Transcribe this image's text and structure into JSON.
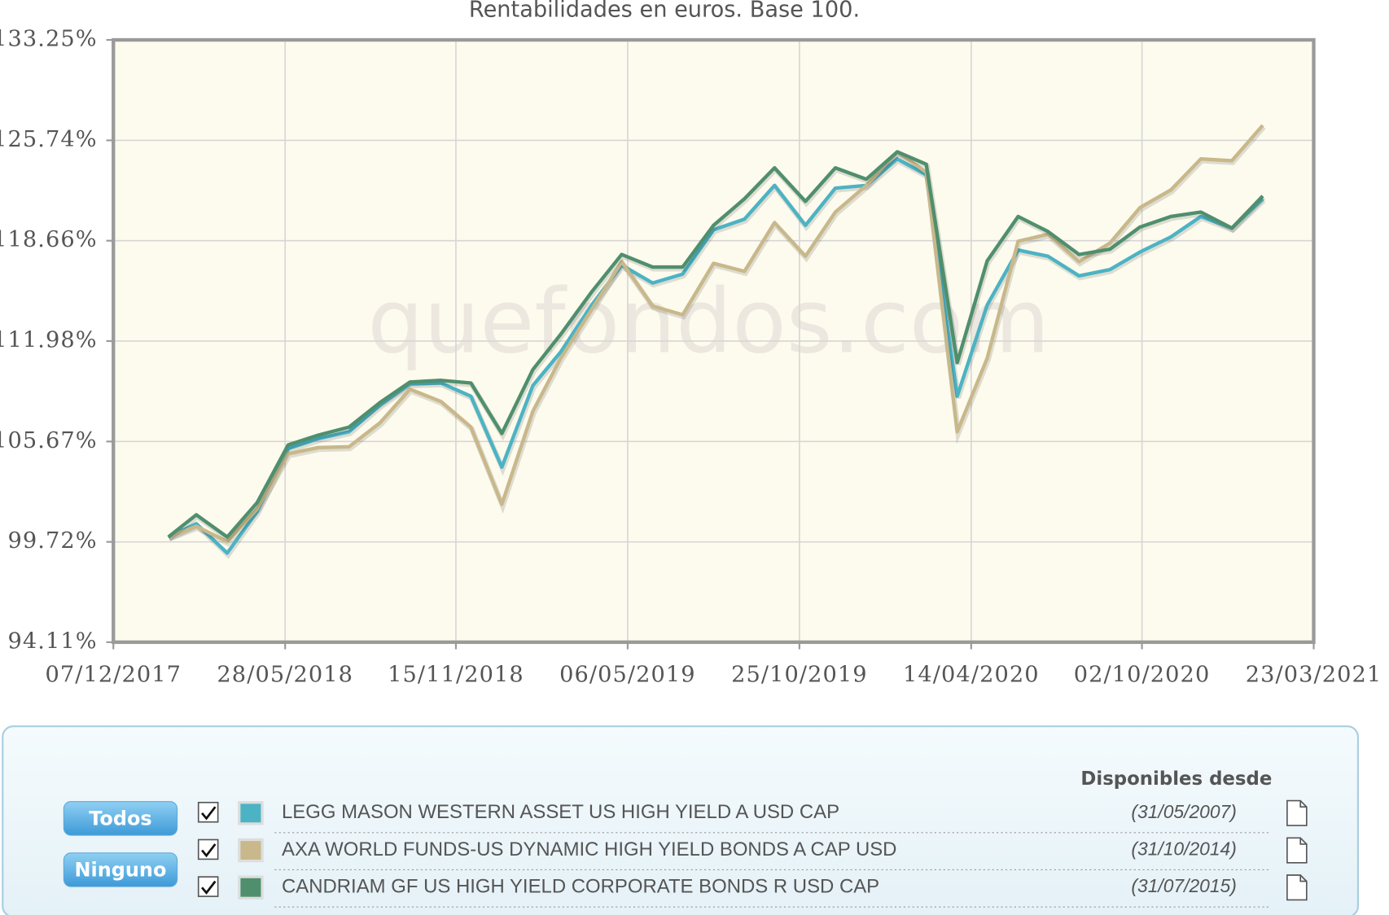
{
  "chart_data": {
    "type": "line",
    "title": "Rentabilidades en euros. Base 100.",
    "watermark": "quefondos.com",
    "log_y": true,
    "grid": true,
    "x": [
      "31/01/2018",
      "28/02/2018",
      "31/03/2018",
      "30/04/2018",
      "31/05/2018",
      "30/06/2018",
      "31/07/2018",
      "31/08/2018",
      "30/09/2018",
      "31/10/2018",
      "30/11/2018",
      "31/12/2018",
      "31/01/2019",
      "28/02/2019",
      "31/03/2019",
      "30/04/2019",
      "31/05/2019",
      "30/06/2019",
      "31/07/2019",
      "31/08/2019",
      "30/09/2019",
      "31/10/2019",
      "30/11/2019",
      "31/12/2019",
      "31/01/2020",
      "29/02/2020",
      "31/03/2020",
      "30/04/2020",
      "31/05/2020",
      "30/06/2020",
      "31/07/2020",
      "31/08/2020",
      "30/09/2020",
      "31/10/2020",
      "30/11/2020",
      "31/12/2020",
      "31/01/2021"
    ],
    "xlim": [
      "07/12/2017",
      "23/03/2021"
    ],
    "xticks": [
      "07/12/2017",
      "28/05/2018",
      "15/11/2018",
      "06/05/2019",
      "25/10/2019",
      "14/04/2020",
      "02/10/2020",
      "23/03/2021"
    ],
    "ylim": [
      94.11,
      133.25
    ],
    "yticks": [
      {
        "value": 94.11,
        "label": "94.11%"
      },
      {
        "value": 99.72,
        "label": "99.72%"
      },
      {
        "value": 105.67,
        "label": "105.67%"
      },
      {
        "value": 111.98,
        "label": "111.98%"
      },
      {
        "value": 118.66,
        "label": "118.66%"
      },
      {
        "value": 125.74,
        "label": "125.74%"
      },
      {
        "value": 133.25,
        "label": "133.25%"
      }
    ],
    "series": [
      {
        "name": "LEGG MASON WESTERN ASSET US HIGH YIELD A USD CAP",
        "since": "(31/05/2007)",
        "color": "#4bb3c4",
        "values": [
          100.0,
          100.77,
          99.08,
          101.49,
          105.24,
          105.84,
          106.27,
          107.92,
          109.25,
          109.3,
          108.47,
          104.12,
          109.14,
          111.28,
          114.34,
          117.0,
          115.8,
          116.4,
          119.41,
          120.15,
          122.51,
          119.72,
          122.32,
          122.51,
          124.4,
          123.26,
          108.47,
          114.34,
          118.02,
          117.6,
          116.28,
          116.7,
          117.89,
          118.92,
          120.33,
          119.53,
          121.57
        ]
      },
      {
        "name": "AXA WORLD FUNDS-US DYNAMIC HIGH YIELD BONDS A CAP USD",
        "since": "(31/10/2014)",
        "color": "#c8b88a",
        "values": [
          100.0,
          100.62,
          99.74,
          101.65,
          104.92,
          105.3,
          105.35,
          106.82,
          108.91,
          108.14,
          106.55,
          101.91,
          107.53,
          110.88,
          114.04,
          117.23,
          114.27,
          113.69,
          117.12,
          116.58,
          119.9,
          117.6,
          120.64,
          122.51,
          124.91,
          123.45,
          106.27,
          110.88,
          118.62,
          119.11,
          117.23,
          118.5,
          120.95,
          122.19,
          124.4,
          124.27,
          126.84
        ]
      },
      {
        "name": "CANDRIAM GF US HIGH YIELD CORPORATE BONDS R USD CAP",
        "since": "(31/07/2015)",
        "color": "#4f8f6e",
        "values": [
          100.0,
          101.29,
          100.0,
          102.01,
          105.46,
          106.06,
          106.55,
          108.08,
          109.36,
          109.47,
          109.3,
          106.16,
          110.15,
          112.42,
          115.21,
          117.72,
          116.87,
          116.87,
          119.72,
          121.57,
          123.76,
          121.38,
          123.76,
          122.95,
          124.91,
          124.02,
          110.6,
          117.29,
          120.33,
          119.29,
          117.72,
          118.08,
          119.6,
          120.33,
          120.64,
          119.53,
          121.76
        ]
      }
    ],
    "legend": {
      "header": "Disponibles desde",
      "buttons": [
        "Todos",
        "Ninguno"
      ]
    }
  }
}
